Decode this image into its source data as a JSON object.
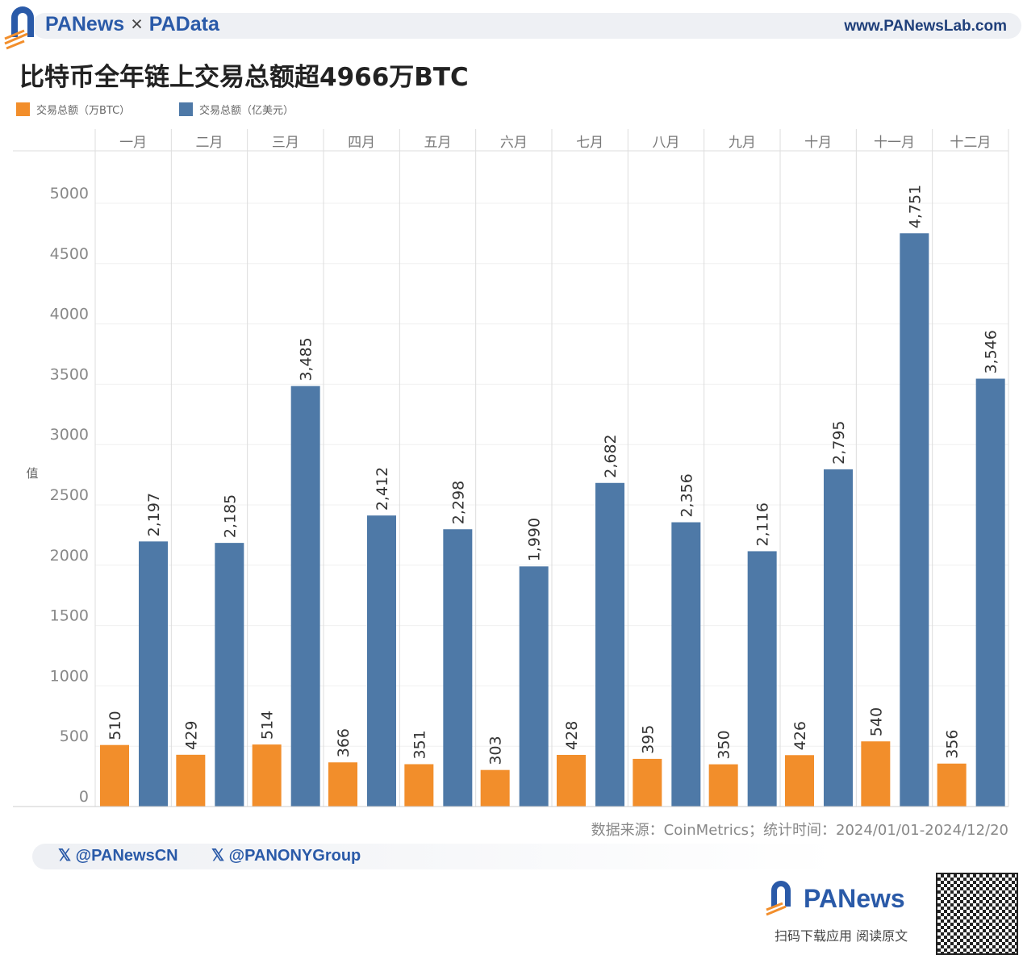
{
  "header": {
    "brand_left": "PANews",
    "separator": "×",
    "brand_right": "PAData",
    "url": "www.PANewsLab.com"
  },
  "colors": {
    "orange": "#f28e2b",
    "blue": "#4e79a7",
    "brand": "#2a5aa8"
  },
  "chart_data": {
    "type": "bar",
    "title": "比特币全年链上交易总额超4966万BTC",
    "ylabel": "值",
    "ylim": [
      0,
      5000
    ],
    "yticks": [
      0,
      500,
      1000,
      1500,
      2000,
      2500,
      3000,
      3500,
      4000,
      4500,
      5000
    ],
    "grid": true,
    "legend_position": "top-left",
    "categories": [
      "一月",
      "二月",
      "三月",
      "四月",
      "五月",
      "六月",
      "七月",
      "八月",
      "九月",
      "十月",
      "十一月",
      "十二月"
    ],
    "series": [
      {
        "name": "交易总额（万BTC）",
        "color": "#f28e2b",
        "values": [
          510,
          429,
          514,
          366,
          351,
          303,
          428,
          395,
          350,
          426,
          540,
          356
        ],
        "labels": [
          "510",
          "429",
          "514",
          "366",
          "351",
          "303",
          "428",
          "395",
          "350",
          "426",
          "540",
          "356"
        ]
      },
      {
        "name": "交易总额（亿美元）",
        "color": "#4e79a7",
        "values": [
          2197,
          2185,
          3485,
          2412,
          2298,
          1990,
          2682,
          2356,
          2116,
          2795,
          4751,
          3546
        ],
        "labels": [
          "2,197",
          "2,185",
          "3,485",
          "2,412",
          "2,298",
          "1,990",
          "2,682",
          "2,356",
          "2,116",
          "2,795",
          "4,751",
          "3,546"
        ]
      }
    ]
  },
  "source": "数据来源：CoinMetrics；统计时间：2024/01/01-2024/12/20",
  "social": [
    "@PANewsCN",
    "@PANONYGroup"
  ],
  "footer": {
    "logo": "PANews",
    "caption": "扫码下载应用  阅读原文"
  }
}
